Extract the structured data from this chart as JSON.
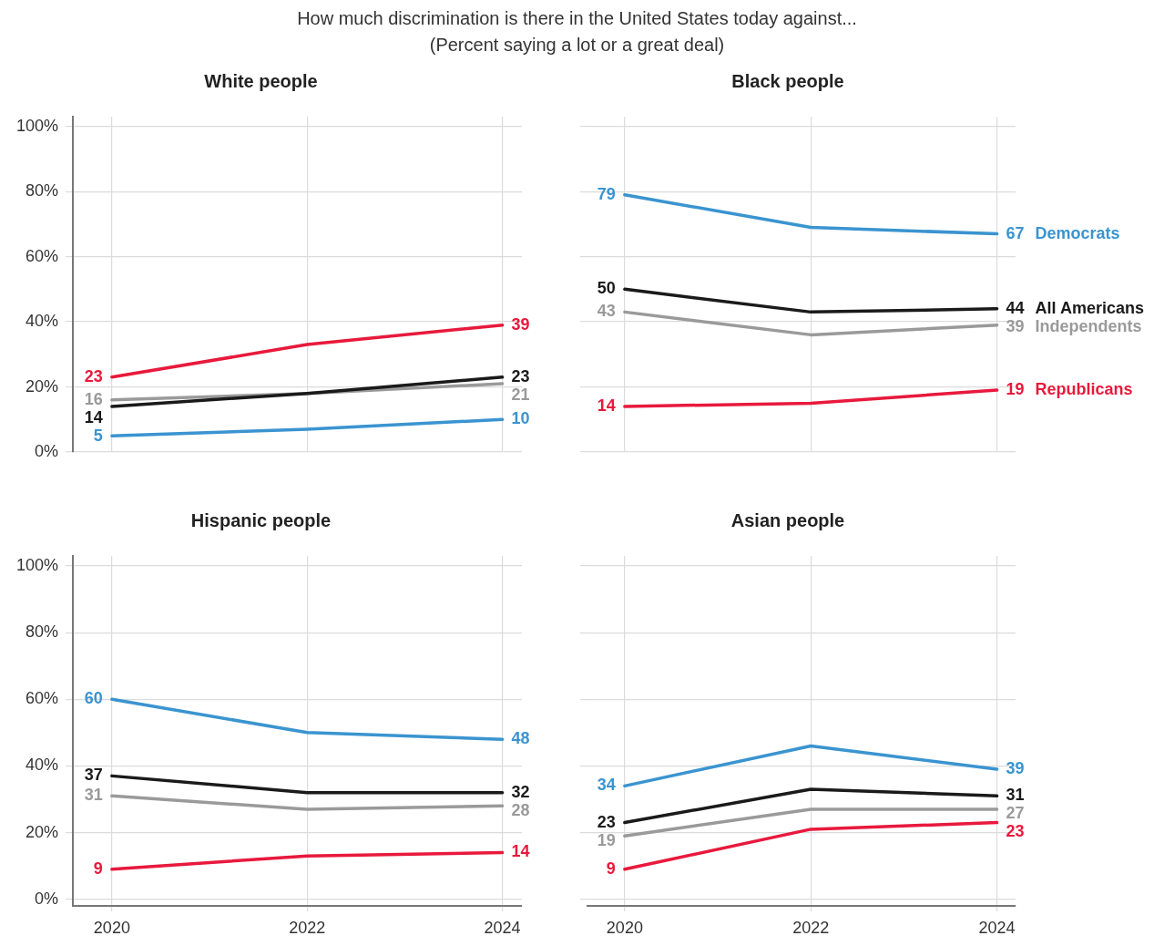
{
  "chart_data": [
    {
      "type": "other",
      "title": "How much discrimination is there in the United States today against...",
      "subtitle": "(Percent saying a lot or a great deal)"
    },
    {
      "type": "line",
      "title": "White people",
      "x": [
        2020,
        2022,
        2024
      ],
      "xlim": [
        2019.6,
        2024.2
      ],
      "xticks": [
        2020,
        2022,
        2024
      ],
      "ylim": [
        0,
        103
      ],
      "yticks": [
        {
          "value": 0,
          "label": "0%"
        },
        {
          "value": 20,
          "label": "20%"
        },
        {
          "value": 40,
          "label": "40%"
        },
        {
          "value": 60,
          "label": "60%"
        },
        {
          "value": 80,
          "label": "80%"
        },
        {
          "value": 100,
          "label": "100%"
        }
      ],
      "grid": true,
      "legend": false,
      "tick_labels": "y",
      "marker": "none",
      "line_style": "solid",
      "series": [
        {
          "color": "#3a94d0",
          "values": [
            5,
            7,
            10
          ],
          "value_labels": [
            "5",
            null,
            "10"
          ]
        },
        {
          "color": "#1a1a1a",
          "values": [
            14,
            18,
            23
          ],
          "value_labels": [
            "14",
            null,
            "23"
          ]
        },
        {
          "color": "#9a9a9a",
          "values": [
            16,
            18,
            21
          ],
          "value_labels": [
            "16",
            null,
            "21"
          ]
        },
        {
          "color": "#e8193c",
          "values": [
            23,
            33,
            39
          ],
          "value_labels": [
            "23",
            null,
            "39"
          ]
        }
      ]
    },
    {
      "type": "line",
      "title": "Black people",
      "x": [
        2020,
        2022,
        2024
      ],
      "xlim": [
        2019.6,
        2024.2
      ],
      "xticks": [
        2020,
        2022,
        2024
      ],
      "ylim": [
        0,
        103
      ],
      "yticks": [
        {
          "value": 0,
          "label": null
        },
        {
          "value": 20,
          "label": null
        },
        {
          "value": 40,
          "label": null
        },
        {
          "value": 60,
          "label": null
        },
        {
          "value": 80,
          "label": null
        },
        {
          "value": 100,
          "label": null
        }
      ],
      "grid": true,
      "legend": false,
      "tick_labels": false,
      "marker": "none",
      "line_style": "solid",
      "series": [
        {
          "name": "Democrats",
          "color": "#3a94d0",
          "values": [
            79,
            69,
            67
          ],
          "value_labels": [
            "79",
            null,
            "67"
          ]
        },
        {
          "name": "All Americans",
          "color": "#1a1a1a",
          "values": [
            50,
            43,
            44
          ],
          "value_labels": [
            "50",
            null,
            "44"
          ]
        },
        {
          "name": "Independents",
          "color": "#9a9a9a",
          "values": [
            43,
            36,
            39
          ],
          "value_labels": [
            "43",
            null,
            "39"
          ]
        },
        {
          "name": "Republicans",
          "color": "#e8193c",
          "values": [
            14,
            15,
            19
          ],
          "value_labels": [
            "14",
            null,
            "19"
          ]
        }
      ]
    },
    {
      "type": "line",
      "title": "Hispanic people",
      "x": [
        2020,
        2022,
        2024
      ],
      "xlim": [
        2019.6,
        2024.2
      ],
      "xticks": [
        2020,
        2022,
        2024
      ],
      "ylim": [
        -2,
        103
      ],
      "yticks": [
        {
          "value": 0,
          "label": "0%"
        },
        {
          "value": 20,
          "label": "20%"
        },
        {
          "value": 40,
          "label": "40%"
        },
        {
          "value": 60,
          "label": "60%"
        },
        {
          "value": 80,
          "label": "80%"
        },
        {
          "value": 100,
          "label": "100%"
        }
      ],
      "grid": true,
      "legend": false,
      "marker": "none",
      "line_style": "solid",
      "series": [
        {
          "color": "#3a94d0",
          "values": [
            60,
            50,
            48
          ],
          "value_labels": [
            "60",
            null,
            "48"
          ]
        },
        {
          "color": "#1a1a1a",
          "values": [
            37,
            32,
            32
          ],
          "value_labels": [
            "37",
            null,
            "32"
          ]
        },
        {
          "color": "#9a9a9a",
          "values": [
            31,
            27,
            28
          ],
          "value_labels": [
            "31",
            null,
            "28"
          ]
        },
        {
          "color": "#e8193c",
          "values": [
            9,
            13,
            14
          ],
          "value_labels": [
            "9",
            null,
            "14"
          ]
        }
      ]
    },
    {
      "type": "line",
      "title": "Asian people",
      "x": [
        2020,
        2022,
        2024
      ],
      "xlim": [
        2019.6,
        2024.2
      ],
      "xticks": [
        2020,
        2022,
        2024
      ],
      "ylim": [
        -2,
        103
      ],
      "yticks": [
        {
          "value": 0,
          "label": null
        },
        {
          "value": 20,
          "label": null
        },
        {
          "value": 40,
          "label": null
        },
        {
          "value": 60,
          "label": null
        },
        {
          "value": 80,
          "label": null
        },
        {
          "value": 100,
          "label": null
        }
      ],
      "grid": true,
      "legend": false,
      "tick_labels": "x",
      "marker": "none",
      "line_style": "solid",
      "series": [
        {
          "color": "#3a94d0",
          "values": [
            34,
            46,
            39
          ],
          "value_labels": [
            "34",
            null,
            "39"
          ]
        },
        {
          "color": "#1a1a1a",
          "values": [
            23,
            33,
            31
          ],
          "value_labels": [
            "23",
            null,
            "31"
          ]
        },
        {
          "color": "#9a9a9a",
          "values": [
            19,
            27,
            27
          ],
          "value_labels": [
            "19",
            null,
            "27"
          ]
        },
        {
          "color": "#e8193c",
          "values": [
            9,
            21,
            23
          ],
          "value_labels": [
            "9",
            null,
            "23"
          ]
        }
      ]
    }
  ]
}
